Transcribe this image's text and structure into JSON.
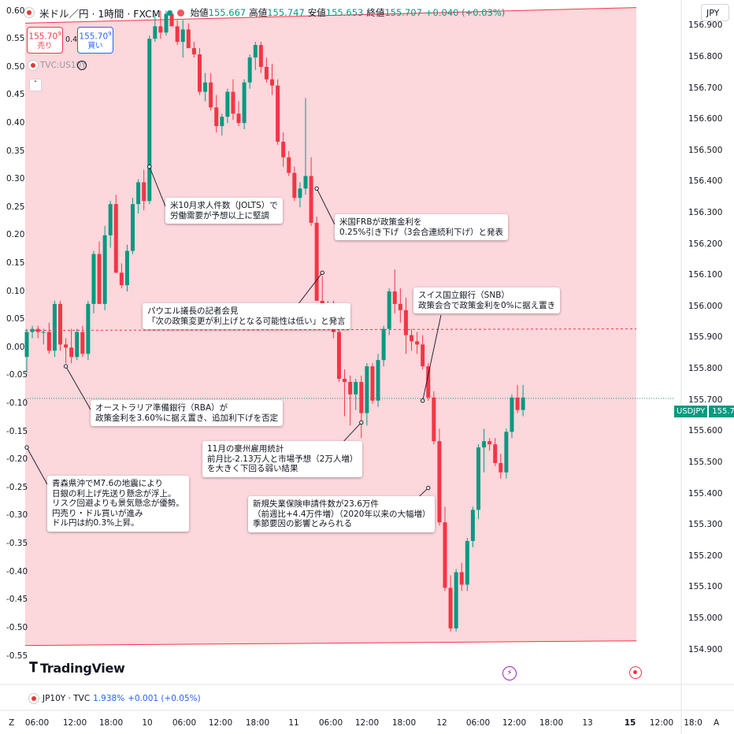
{
  "header": {
    "symbol_title": "米ドル／円 · 1時間 · FXCM",
    "open_label": "始値",
    "open_value": "155.667",
    "high_label": "高値",
    "high_value": "155.747",
    "low_label": "安値",
    "low_value": "155.653",
    "close_label": "終値",
    "close_value": "155.707",
    "change": "+0.040 (+0.03%)",
    "currency": "JPY"
  },
  "order": {
    "sell_price": "155.70",
    "sell_sup": "9",
    "sell_label": "売り",
    "spread": "0.4",
    "buy_price": "155.70",
    "buy_sup": "9",
    "buy_label": "買い"
  },
  "overlay_symbol": "TVC:US10Y",
  "bottom_symbol": {
    "name": "JP10Y · TVC",
    "value": "1.938%",
    "change": "+0.001 (+0.05%)"
  },
  "brand": "TradingView",
  "last_price_tag": {
    "symbol": "USDJPY",
    "price": "155.707"
  },
  "colors": {
    "up": "#089981",
    "down": "#f23645",
    "range_fill": "#fcd7dc",
    "range_line": "#f23645",
    "accent": "#2962ff"
  },
  "chart_data": {
    "type": "candlestick",
    "right_axis": {
      "ticks": [
        "156.900",
        "156.800",
        "156.700",
        "156.600",
        "156.500",
        "156.400",
        "156.300",
        "156.200",
        "156.100",
        "156.000",
        "155.900",
        "155.800",
        "155.700",
        "155.600",
        "155.500",
        "155.400",
        "155.300",
        "155.200",
        "155.100",
        "155.000",
        "154.900"
      ],
      "ylim": [
        154.88,
        156.93
      ]
    },
    "left_axis": {
      "ticks": [
        "0.60",
        "0.55",
        "0.50",
        "0.45",
        "0.40",
        "0.35",
        "0.30",
        "0.25",
        "0.20",
        "0.15",
        "0.10",
        "0.05",
        "0.00",
        "-0.05",
        "-0.10",
        "-0.15",
        "-0.20",
        "-0.25",
        "-0.30",
        "-0.35",
        "-0.40",
        "-0.45",
        "-0.50",
        "-0.55"
      ],
      "ylim": [
        -0.555,
        0.605
      ]
    },
    "x_ticks": [
      "06:00",
      "12:00",
      "18:00",
      "10",
      "06:00",
      "12:00",
      "18:00",
      "11",
      "06:00",
      "12:00",
      "18:00",
      "12",
      "06:00",
      "12:00",
      "18:00",
      "13",
      "15",
      "12:00",
      "18:0"
    ],
    "candles": [
      [
        155.84,
        155.93,
        155.79,
        155.92
      ],
      [
        155.92,
        155.94,
        155.9,
        155.93
      ],
      [
        155.93,
        155.94,
        155.9,
        155.92
      ],
      [
        155.92,
        155.93,
        155.88,
        155.92
      ],
      [
        155.92,
        155.95,
        155.85,
        155.86
      ],
      [
        155.86,
        156.02,
        155.84,
        156.01
      ],
      [
        156.01,
        156.02,
        155.86,
        155.88
      ],
      [
        155.88,
        155.9,
        155.82,
        155.87
      ],
      [
        155.87,
        155.93,
        155.82,
        155.84
      ],
      [
        155.84,
        155.93,
        155.83,
        155.92
      ],
      [
        155.92,
        155.94,
        155.84,
        155.85
      ],
      [
        155.85,
        156.02,
        155.83,
        156.01
      ],
      [
        156.01,
        156.18,
        155.98,
        156.17
      ],
      [
        156.17,
        156.21,
        156.01,
        156.01
      ],
      [
        156.01,
        156.26,
        155.99,
        156.23
      ],
      [
        156.23,
        156.34,
        156.19,
        156.33
      ],
      [
        156.33,
        156.36,
        156.11,
        156.11
      ],
      [
        156.11,
        156.14,
        156.06,
        156.07
      ],
      [
        156.07,
        156.2,
        156.05,
        156.18
      ],
      [
        156.18,
        156.35,
        156.17,
        156.33
      ],
      [
        156.33,
        156.41,
        156.3,
        156.4
      ],
      [
        156.4,
        156.44,
        156.31,
        156.34
      ],
      [
        156.34,
        156.87,
        156.33,
        156.86
      ],
      [
        156.86,
        156.94,
        156.85,
        156.9
      ],
      [
        156.9,
        156.95,
        156.86,
        156.88
      ],
      [
        156.88,
        156.95,
        156.87,
        156.94
      ],
      [
        156.94,
        156.95,
        156.9,
        156.9
      ],
      [
        156.9,
        156.92,
        156.84,
        156.85
      ],
      [
        156.85,
        156.92,
        156.8,
        156.89
      ],
      [
        156.89,
        156.91,
        156.83,
        156.83
      ],
      [
        156.83,
        156.85,
        156.8,
        156.81
      ],
      [
        156.81,
        156.83,
        156.68,
        156.69
      ],
      [
        156.69,
        156.75,
        156.66,
        156.72
      ],
      [
        156.72,
        156.75,
        156.63,
        156.64
      ],
      [
        156.64,
        156.68,
        156.56,
        156.58
      ],
      [
        156.58,
        156.62,
        156.55,
        156.61
      ],
      [
        156.61,
        156.7,
        156.59,
        156.69
      ],
      [
        156.69,
        156.73,
        156.6,
        156.62
      ],
      [
        156.62,
        156.66,
        156.58,
        156.59
      ],
      [
        156.59,
        156.73,
        156.57,
        156.72
      ],
      [
        156.72,
        156.81,
        156.7,
        156.8
      ],
      [
        156.8,
        156.85,
        156.76,
        156.84
      ],
      [
        156.84,
        156.85,
        156.75,
        156.77
      ],
      [
        156.77,
        156.8,
        156.72,
        156.73
      ],
      [
        156.73,
        156.78,
        156.68,
        156.71
      ],
      [
        156.71,
        156.73,
        156.52,
        156.53
      ],
      [
        156.53,
        156.56,
        156.45,
        156.48
      ],
      [
        156.48,
        156.5,
        156.42,
        156.43
      ],
      [
        156.43,
        156.45,
        156.34,
        156.35
      ],
      [
        156.35,
        156.4,
        156.32,
        156.38
      ],
      [
        156.38,
        156.67,
        156.36,
        156.42
      ],
      [
        156.42,
        156.48,
        156.26,
        156.27
      ],
      [
        156.27,
        156.29,
        156.02,
        156.02
      ],
      [
        156.02,
        156.1,
        155.99,
        156.0
      ],
      [
        156.0,
        156.02,
        155.98,
        156.01
      ],
      [
        156.01,
        156.02,
        155.9,
        155.92
      ],
      [
        155.92,
        156.0,
        155.76,
        155.77
      ],
      [
        155.77,
        155.8,
        155.65,
        155.76
      ],
      [
        155.76,
        155.78,
        155.62,
        155.72
      ],
      [
        155.72,
        155.77,
        155.67,
        155.76
      ],
      [
        155.76,
        155.78,
        155.58,
        155.66
      ],
      [
        155.66,
        155.82,
        155.62,
        155.81
      ],
      [
        155.81,
        155.82,
        155.69,
        155.7
      ],
      [
        155.7,
        155.85,
        155.68,
        155.83
      ],
      [
        155.83,
        155.94,
        155.81,
        155.93
      ],
      [
        155.93,
        156.06,
        155.91,
        156.05
      ],
      [
        156.05,
        156.12,
        155.98,
        156.01
      ],
      [
        156.01,
        156.06,
        155.95,
        155.99
      ],
      [
        155.99,
        156.03,
        155.85,
        155.91
      ],
      [
        155.91,
        155.93,
        155.86,
        155.89
      ],
      [
        155.89,
        155.92,
        155.85,
        155.88
      ],
      [
        155.88,
        155.91,
        155.8,
        155.81
      ],
      [
        155.81,
        155.82,
        155.7,
        155.71
      ],
      [
        155.71,
        155.73,
        155.56,
        155.57
      ],
      [
        155.57,
        155.61,
        155.3,
        155.31
      ],
      [
        155.31,
        155.36,
        155.09,
        155.1
      ],
      [
        155.1,
        155.14,
        154.96,
        154.97
      ],
      [
        154.97,
        155.16,
        154.96,
        155.15
      ],
      [
        155.15,
        155.18,
        155.09,
        155.11
      ],
      [
        155.11,
        155.26,
        155.09,
        155.25
      ],
      [
        155.25,
        155.36,
        155.23,
        155.35
      ],
      [
        155.35,
        155.56,
        155.32,
        155.55
      ],
      [
        155.55,
        155.61,
        155.47,
        155.57
      ],
      [
        155.57,
        155.58,
        155.54,
        155.56
      ],
      [
        155.56,
        155.58,
        155.49,
        155.5
      ],
      [
        155.5,
        155.53,
        155.45,
        155.47
      ],
      [
        155.47,
        155.61,
        155.45,
        155.6
      ],
      [
        155.6,
        155.72,
        155.58,
        155.71
      ],
      [
        155.71,
        155.75,
        155.66,
        155.67
      ],
      [
        155.67,
        155.75,
        155.65,
        155.71
      ]
    ],
    "range_box": {
      "top_start": 156.91,
      "top_end": 156.96,
      "bottom_start": 154.915,
      "bottom_end": 154.93
    },
    "prev_close_line": 155.925,
    "last_price": 155.707,
    "annotations": [
      {
        "text": "米10月求人件数（JOLTS）で\n労働需要が予想以上に堅調"
      },
      {
        "text": "米国FRBが政策金利を\n0.25%引き下げ（3会合連続利下げ）と発表"
      },
      {
        "text": "パウエル議長の記者会見\n「次の政策変更が利上げとなる可能性は低い」と発言"
      },
      {
        "text": "スイス国立銀行（SNB）\n政策会合で政策金利を0%に据え置き"
      },
      {
        "text": "オーストラリア準備銀行（RBA）が\n政策金利を3.60%に据え置き、追加利下げを否定"
      },
      {
        "text": "11月の豪州雇用統計\n前月比-2.13万人と市場予想（2万人増）\nを大きく下回る弱い結果"
      },
      {
        "text": "青森県沖でM7.6の地震により\n日銀の利上げ先送り懸念が浮上。\nリスク回避よりも景気懸念が優勢。\n円売り・ドル買いが進み\nドル円は約0.3%上昇。"
      },
      {
        "text": "新規失業保険申請件数が23.6万件\n（前週比+4.4万件増）（2020年以来の大幅増）\n季節要因の影響とみられる"
      }
    ]
  }
}
